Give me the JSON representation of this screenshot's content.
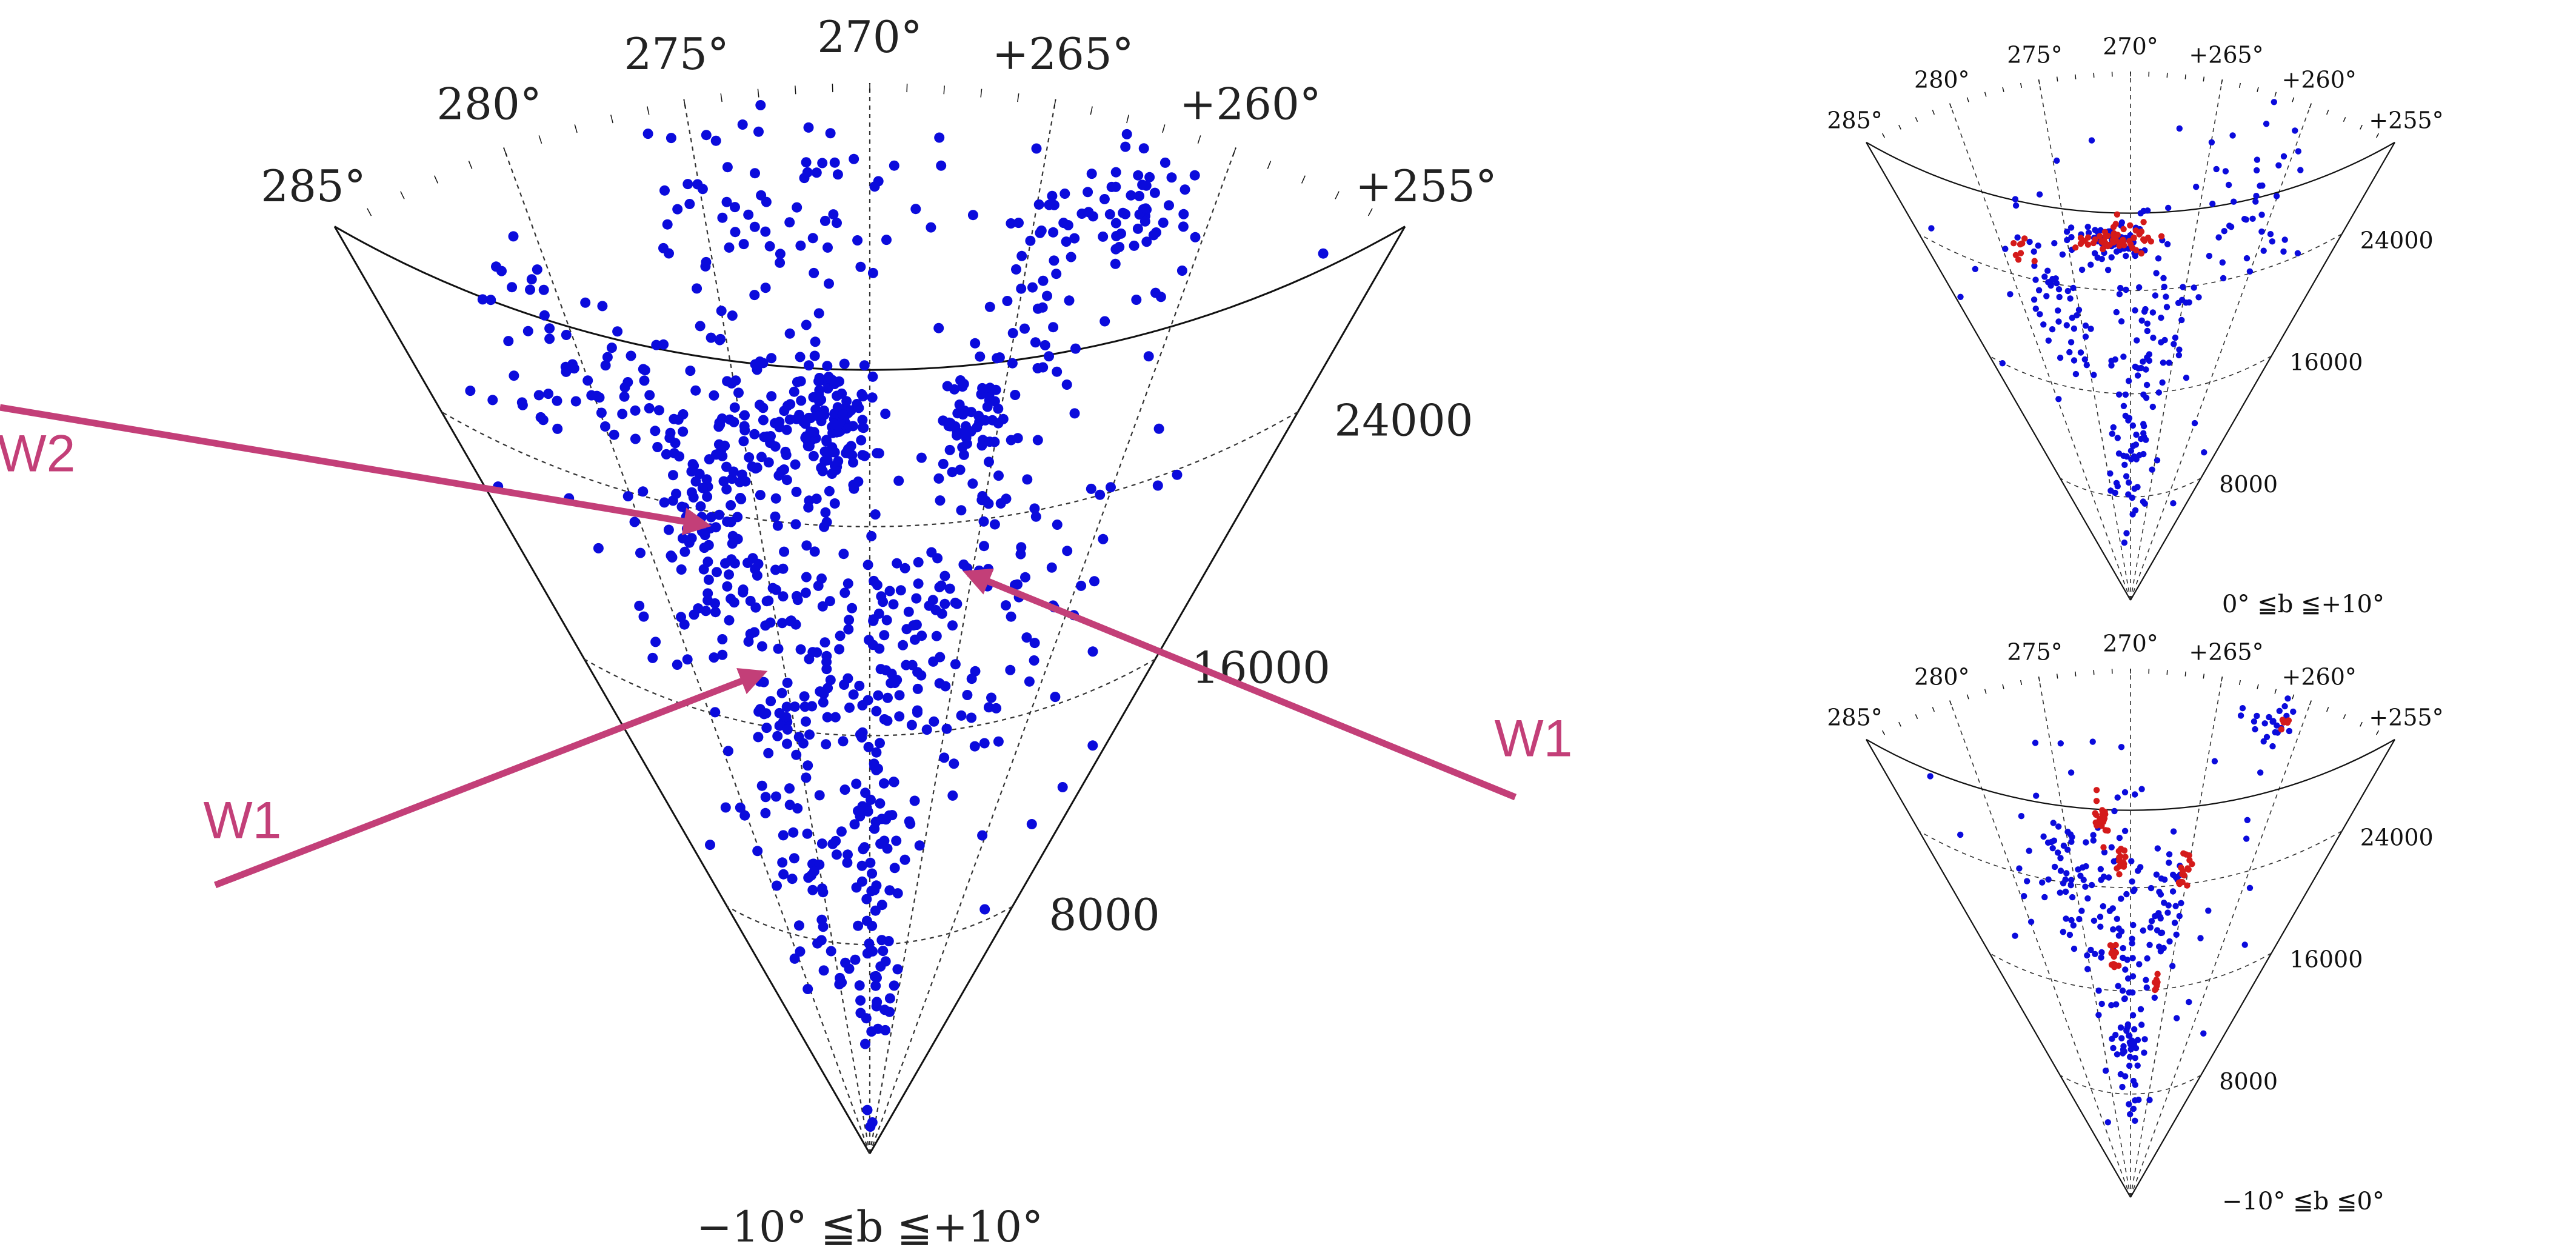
{
  "colors": {
    "galaxies": "#0b0bdc",
    "highlight": "#d41a1a",
    "arrow": "#c33f78",
    "frame": "#111111",
    "grid": "#333333"
  },
  "chart_data": [
    {
      "type": "scatter",
      "projection": "polar-wedge",
      "panel": "main",
      "angle_range": [
        255,
        285
      ],
      "radius_range": [
        0,
        30000
      ],
      "angle_ticks": [
        "285°",
        "280°",
        "275°",
        "270°",
        "+265°",
        "+260°",
        "+255°"
      ],
      "angle_tick_values": [
        285,
        280,
        275,
        270,
        265,
        260,
        255
      ],
      "radial_ticks": [
        "8000",
        "16000",
        "24000"
      ],
      "radial_tick_values": [
        8000,
        16000,
        24000
      ],
      "condition": "−10° ≦b ≦+10°",
      "annotations": [
        {
          "label": "W2",
          "tip": [
            277.3,
            18200
          ]
        },
        {
          "label": "W1",
          "tip": [
            276.3,
            13800
          ]
        },
        {
          "label": "W1",
          "tip": [
            265.2,
            16500
          ]
        }
      ],
      "clusters": [
        {
          "l": 271.5,
          "v": 20500,
          "dl": 1.4,
          "dv": 1500,
          "n": 110
        },
        {
          "l": 274.5,
          "v": 20000,
          "dl": 2.0,
          "dv": 2500,
          "n": 100
        },
        {
          "l": 266.0,
          "v": 20500,
          "dl": 1.3,
          "dv": 1500,
          "n": 60
        },
        {
          "l": 278.0,
          "v": 19000,
          "dl": 1.8,
          "dv": 3500,
          "n": 80
        },
        {
          "l": 262.0,
          "v": 27500,
          "dl": 1.2,
          "dv": 1500,
          "n": 50
        },
        {
          "l": 270.0,
          "v": 9500,
          "dl": 2.5,
          "dv": 3500,
          "n": 70
        },
        {
          "l": 268.0,
          "v": 14500,
          "dl": 3.0,
          "dv": 3000,
          "n": 70
        },
        {
          "l": 275.0,
          "v": 14000,
          "dl": 3.5,
          "dv": 3500,
          "n": 80
        },
        {
          "l": 272.5,
          "v": 27000,
          "dl": 3.5,
          "dv": 2500,
          "n": 60
        },
        {
          "l": 281.0,
          "v": 24000,
          "dl": 2.5,
          "dv": 3500,
          "n": 50
        },
        {
          "l": 264.5,
          "v": 25500,
          "dl": 1.2,
          "dv": 2500,
          "n": 40
        },
        {
          "l": 263.0,
          "v": 16500,
          "dl": 2.5,
          "dv": 4000,
          "n": 50
        },
        {
          "l": 276.5,
          "v": 8500,
          "dl": 3.0,
          "dv": 3000,
          "n": 40
        },
        {
          "l": 270.0,
          "v": 4500,
          "dl": 3.0,
          "dv": 2500,
          "n": 25
        },
        {
          "l": 270.0,
          "v": 17500,
          "dl": 13.0,
          "dv": 11000,
          "n": 110
        }
      ]
    },
    {
      "type": "scatter",
      "projection": "polar-wedge",
      "panel": "upper-right",
      "angle_range": [
        255,
        285
      ],
      "radius_range": [
        0,
        30000
      ],
      "angle_ticks": [
        "285°",
        "280°",
        "275°",
        "270°",
        "+265°",
        "+260°",
        "+255°"
      ],
      "angle_tick_values": [
        285,
        280,
        275,
        270,
        265,
        260,
        255
      ],
      "radial_ticks": [
        "8000",
        "16000",
        "24000"
      ],
      "radial_tick_values": [
        8000,
        16000,
        24000
      ],
      "condition": "0° ≦b ≦+10°",
      "clusters": [
        {
          "l": 271.5,
          "v": 20500,
          "dl": 3.0,
          "dv": 1200,
          "n": 60
        },
        {
          "l": 277.0,
          "v": 17000,
          "dl": 2.5,
          "dv": 4000,
          "n": 45
        },
        {
          "l": 268.0,
          "v": 15000,
          "dl": 3.0,
          "dv": 3500,
          "n": 40
        },
        {
          "l": 262.0,
          "v": 24000,
          "dl": 2.5,
          "dv": 4000,
          "n": 35
        },
        {
          "l": 270.0,
          "v": 8500,
          "dl": 3.0,
          "dv": 4000,
          "n": 45
        },
        {
          "l": 270.0,
          "v": 18000,
          "dl": 13.0,
          "dv": 10000,
          "n": 70
        }
      ],
      "highlight_clusters": [
        {
          "l": 271.0,
          "v": 20500,
          "dl": 2.5,
          "dv": 700,
          "n": 55
        },
        {
          "l": 278.5,
          "v": 21000,
          "dl": 0.6,
          "dv": 600,
          "n": 8
        }
      ]
    },
    {
      "type": "scatter",
      "projection": "polar-wedge",
      "panel": "lower-right",
      "angle_range": [
        255,
        285
      ],
      "radius_range": [
        0,
        30000
      ],
      "angle_ticks": [
        "285°",
        "280°",
        "275°",
        "270°",
        "+265°",
        "+260°",
        "+255°"
      ],
      "angle_tick_values": [
        285,
        280,
        275,
        270,
        265,
        260,
        255
      ],
      "radial_ticks": [
        "8000",
        "16000",
        "24000"
      ],
      "radial_tick_values": [
        8000,
        16000,
        24000
      ],
      "condition": "−10° ≦b ≦0°",
      "clusters": [
        {
          "l": 274.5,
          "v": 18500,
          "dl": 3.0,
          "dv": 3000,
          "n": 55
        },
        {
          "l": 270.0,
          "v": 14000,
          "dl": 3.0,
          "dv": 4000,
          "n": 50
        },
        {
          "l": 266.5,
          "v": 16500,
          "dl": 1.5,
          "dv": 3000,
          "n": 30
        },
        {
          "l": 262.0,
          "v": 28000,
          "dl": 1.2,
          "dv": 1500,
          "n": 25
        },
        {
          "l": 270.0,
          "v": 8000,
          "dl": 3.0,
          "dv": 3500,
          "n": 40
        },
        {
          "l": 270.0,
          "v": 18000,
          "dl": 13.0,
          "dv": 10000,
          "n": 60
        }
      ],
      "highlight_clusters": [
        {
          "l": 272.2,
          "v": 21500,
          "dl": 0.4,
          "dv": 1100,
          "n": 22
        },
        {
          "l": 270.8,
          "v": 19000,
          "dl": 0.4,
          "dv": 900,
          "n": 18
        },
        {
          "l": 265.3,
          "v": 18500,
          "dl": 0.4,
          "dv": 1000,
          "n": 16
        },
        {
          "l": 272.0,
          "v": 13500,
          "dl": 0.4,
          "dv": 1000,
          "n": 16
        },
        {
          "l": 266.5,
          "v": 12500,
          "dl": 0.3,
          "dv": 700,
          "n": 10
        },
        {
          "l": 260.8,
          "v": 28500,
          "dl": 0.4,
          "dv": 500,
          "n": 6
        }
      ]
    }
  ]
}
